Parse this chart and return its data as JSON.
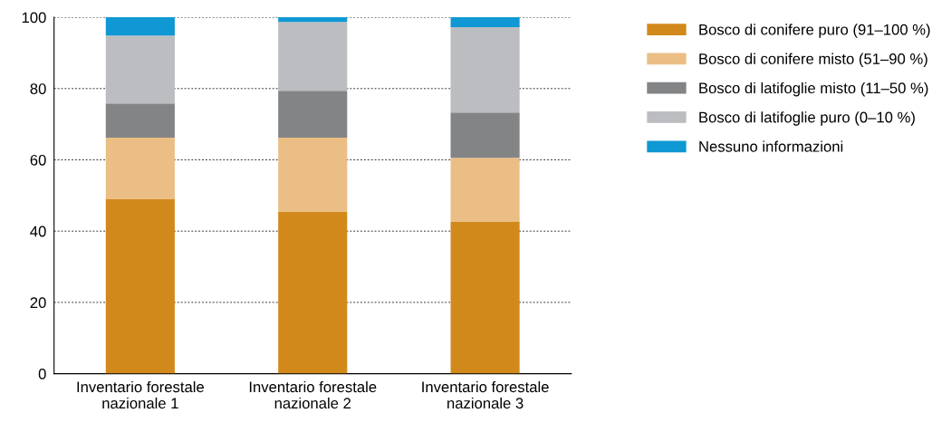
{
  "chart_data": {
    "type": "bar",
    "stacked": true,
    "categories": [
      "Inventario forestale\nnazionale 1",
      "Inventario forestale\nnazionale 2",
      "Inventario forestale\nnazionale 3"
    ],
    "series": [
      {
        "name": "Bosco di conifere puro (91–100 %)",
        "color": "#d2891c",
        "values": [
          49.1,
          45.5,
          42.7
        ]
      },
      {
        "name": "Bosco di conifere misto (51–90 %)",
        "color": "#ebbe85",
        "values": [
          17.1,
          20.7,
          17.9
        ]
      },
      {
        "name": "Bosco di latifoglie misto (11–50 %)",
        "color": "#838486",
        "values": [
          9.6,
          13.2,
          12.7
        ]
      },
      {
        "name": "Bosco di latifoglie puro (0–10 %)",
        "color": "#bcbdc0",
        "values": [
          19.1,
          19.3,
          23.9
        ]
      },
      {
        "name": "Nessuno informazioni",
        "color": "#0f98d3",
        "values": [
          5.1,
          1.3,
          2.8
        ]
      }
    ],
    "ylim": [
      0,
      100
    ],
    "yticks": [
      0,
      20,
      40,
      60,
      80,
      100
    ],
    "grid": "y",
    "legend": "right"
  }
}
